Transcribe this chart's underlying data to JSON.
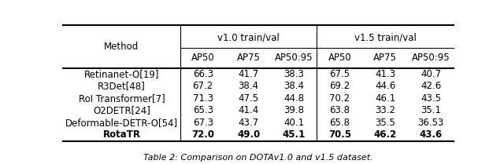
{
  "methods": [
    "Retinanet-O[19]",
    "R3Det[48]",
    "RoI Transformer[7]",
    "O2DETR[24]",
    "Deformable-DETR-O[54]",
    "RotaTR"
  ],
  "data": [
    [
      "66.3",
      "41.7",
      "38.3",
      "67.5",
      "41.3",
      "40.7"
    ],
    [
      "67.2",
      "38.4",
      "38.4",
      "69.2",
      "44.6",
      "42.6"
    ],
    [
      "71.3",
      "47.5",
      "44.8",
      "70.2",
      "46.1",
      "43.5"
    ],
    [
      "65.3",
      "41.4",
      "39.8",
      "63.8",
      "33.2",
      "35.1"
    ],
    [
      "67.3",
      "43.7",
      "40.1",
      "65.8",
      "35.5",
      "36.53"
    ],
    [
      "72.0",
      "49.0",
      "45.1",
      "70.5",
      "46.2",
      "43.6"
    ]
  ],
  "group_labels": [
    "v1.0 train/val",
    "v1.5 train/val"
  ],
  "col_labels": [
    "AP50",
    "AP75",
    "AP50:95",
    "AP50",
    "AP75",
    "AP50:95"
  ],
  "method_header": "Method",
  "caption": "Table 2: Comparison on DOTAv1.0 and v1.5 dataset.",
  "bold_last_row": true,
  "bg_color": "#ffffff",
  "font_size": 8.5,
  "caption_font_size": 8.0
}
